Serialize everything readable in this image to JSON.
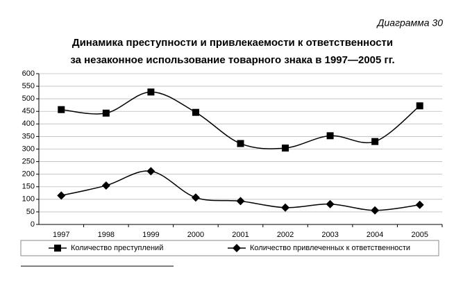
{
  "chart_data": {
    "type": "line",
    "annotation": "Диаграмма 30",
    "title": "Динамика преступности и привлекаемости к ответственности",
    "subtitle": "за незаконное использование товарного знака в 1997—2005 гг.",
    "categories": [
      "1997",
      "1998",
      "1999",
      "2000",
      "2001",
      "2002",
      "2003",
      "2004",
      "2005"
    ],
    "series": [
      {
        "name": "Количество преступлений",
        "color": "#000000",
        "marker": "square",
        "values": [
          457,
          443,
          527,
          446,
          322,
          304,
          353,
          330,
          472
        ]
      },
      {
        "name": "Количество привлеченных к ответственности",
        "color": "#000000",
        "marker": "diamond",
        "values": [
          115,
          155,
          212,
          107,
          93,
          67,
          81,
          56,
          78
        ]
      }
    ],
    "ylim": [
      0,
      600
    ],
    "yticks": [
      0,
      50,
      100,
      150,
      200,
      250,
      300,
      350,
      400,
      450,
      500,
      550,
      600
    ],
    "grid": true,
    "smooth": true,
    "legend": "bottom"
  }
}
